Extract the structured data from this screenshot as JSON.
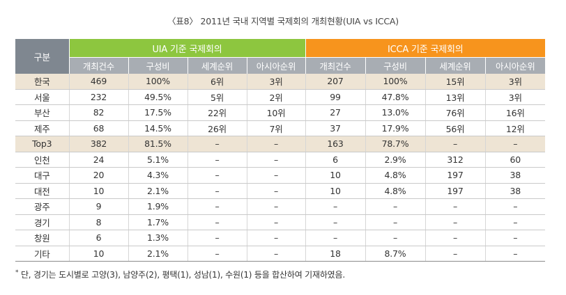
{
  "title": "〈표8〉 2011년 국내 지역별 국제회의 개최현황(UIA vs ICCA)",
  "header": {
    "corner": "구분",
    "uia_group": "UIA 기준 국제회의",
    "icca_group": "ICCA 기준 국제회의",
    "sub": [
      "개최건수",
      "구성비",
      "세계순위",
      "아시아순위",
      "개최건수",
      "구성비",
      "세계순위",
      "아시아순위"
    ]
  },
  "rows": [
    {
      "label": "한국",
      "hl": true,
      "cells": [
        "469",
        "100%",
        "6위",
        "3위",
        "207",
        "100%",
        "15위",
        "3위"
      ]
    },
    {
      "label": "서울",
      "hl": false,
      "cells": [
        "232",
        "49.5%",
        "5위",
        "2위",
        "99",
        "47.8%",
        "13위",
        "3위"
      ]
    },
    {
      "label": "부산",
      "hl": false,
      "cells": [
        "82",
        "17.5%",
        "22위",
        "10위",
        "27",
        "13.0%",
        "76위",
        "16위"
      ]
    },
    {
      "label": "제주",
      "hl": false,
      "cells": [
        "68",
        "14.5%",
        "26위",
        "7위",
        "37",
        "17.9%",
        "56위",
        "12위"
      ]
    },
    {
      "label": "Top3",
      "hl": true,
      "cells": [
        "382",
        "81.5%",
        "–",
        "–",
        "163",
        "78.7%",
        "–",
        "–"
      ]
    },
    {
      "label": "인천",
      "hl": false,
      "cells": [
        "24",
        "5.1%",
        "–",
        "–",
        "6",
        "2.9%",
        "312",
        "60"
      ]
    },
    {
      "label": "대구",
      "hl": false,
      "cells": [
        "20",
        "4.3%",
        "–",
        "–",
        "10",
        "4.8%",
        "197",
        "38"
      ]
    },
    {
      "label": "대전",
      "hl": false,
      "cells": [
        "10",
        "2.1%",
        "–",
        "–",
        "10",
        "4.8%",
        "197",
        "38"
      ]
    },
    {
      "label": "광주",
      "hl": false,
      "cells": [
        "9",
        "1.9%",
        "–",
        "–",
        "–",
        "–",
        "–",
        "–"
      ]
    },
    {
      "label": "경기",
      "hl": false,
      "cells": [
        "8",
        "1.7%",
        "–",
        "–",
        "–",
        "–",
        "–",
        "–"
      ]
    },
    {
      "label": "창원",
      "hl": false,
      "cells": [
        "6",
        "1.3%",
        "–",
        "–",
        "–",
        "–",
        "–",
        "–"
      ]
    },
    {
      "label": "기타",
      "hl": false,
      "cells": [
        "10",
        "2.1%",
        "–",
        "–",
        "18",
        "8.7%",
        "–",
        "–"
      ]
    }
  ],
  "footnote_mark": "*",
  "footnote": "단, 경기는 도시별로 고양(3), 남양주(2), 평택(1), 성남(1), 수원(1) 등을 합산하여 기재하였음."
}
